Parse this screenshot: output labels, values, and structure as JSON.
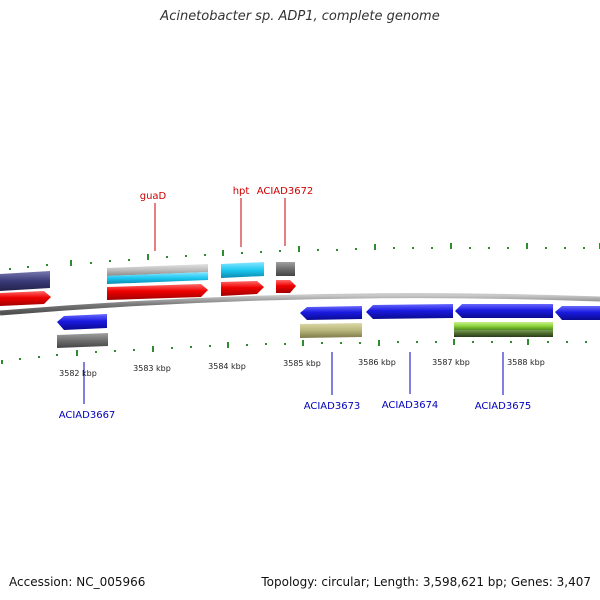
{
  "header": {
    "title": "Acinetobacter sp. ADP1, complete genome"
  },
  "footer": {
    "accession": "Accession: NC_005966",
    "summary": "Topology: circular; Length: 3,598,621 bp; Genes: 3,407"
  },
  "axis": {
    "tick_labels": [
      "3582 kbp",
      "3583 kbp",
      "3584 kbp",
      "3585 kbp",
      "3586 kbp",
      "3587 kbp",
      "3588 kbp"
    ]
  },
  "labels": {
    "top": [
      "guaD",
      "hpt",
      "ACIAD3672"
    ],
    "bottom": [
      "ACIAD3667",
      "ACIAD3673",
      "ACIAD3674",
      "ACIAD3675"
    ]
  },
  "colors": {
    "backbone": "#8a8a8a",
    "tick": "#2e8b2e",
    "forward_cds": "#e80000",
    "reverse_cds": "#1a1ae0",
    "navy": "#3a3a7a",
    "gray": "#6e6e6e",
    "silver": "#bdbdbd",
    "cyan": "#1ec8f0",
    "olive": "#b8b57a",
    "lime": "#8cd43c",
    "top_label": "#cc0000",
    "bottom_label": "#0000bb"
  }
}
